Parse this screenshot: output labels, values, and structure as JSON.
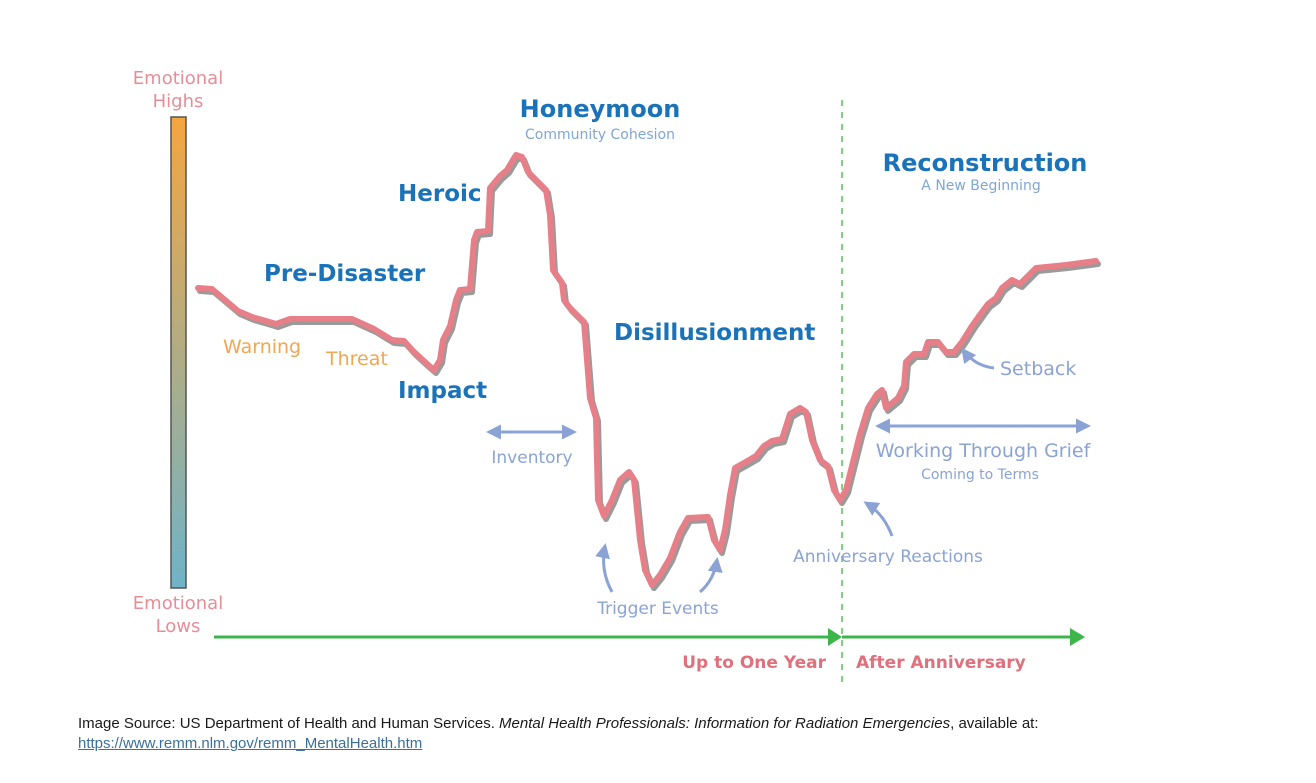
{
  "scale": {
    "top_label_line1": "Emotional",
    "top_label_line2": "Highs",
    "bottom_label_line1": "Emotional",
    "bottom_label_line2": "Lows",
    "gradient_top_color": "#f4a640",
    "gradient_bottom_color": "#6fb3c8"
  },
  "phases": {
    "pre_disaster": "Pre-Disaster",
    "heroic": "Heroic",
    "honeymoon": "Honeymoon",
    "honeymoon_sub": "Community Cohesion",
    "impact": "Impact",
    "disillusionment": "Disillusionment",
    "reconstruction": "Reconstruction",
    "reconstruction_sub": "A New Beginning"
  },
  "events": {
    "warning": "Warning",
    "threat": "Threat",
    "inventory": "Inventory",
    "trigger_events": "Trigger Events",
    "anniversary_reactions": "Anniversary Reactions",
    "setback": "Setback",
    "working_through_grief": "Working Through Grief",
    "coming_to_terms": "Coming to Terms"
  },
  "timeline": {
    "up_to_one_year": "Up to One Year",
    "after_anniversary": "After Anniversary"
  },
  "colors": {
    "curve": "#e67f87",
    "phase_text": "#1a72b8",
    "arrow": "#8aa3d4",
    "timeline": "#3cb54a",
    "divider": "#7cd37f"
  },
  "source": {
    "prefix": "Image Source: US Department of Health and Human Services. ",
    "title": "Mental Health Professionals: Information for Radiation Emergencies",
    "suffix": ", available at:",
    "link": "https://www.remm.nlm.gov/remm_MentalHealth.htm"
  }
}
